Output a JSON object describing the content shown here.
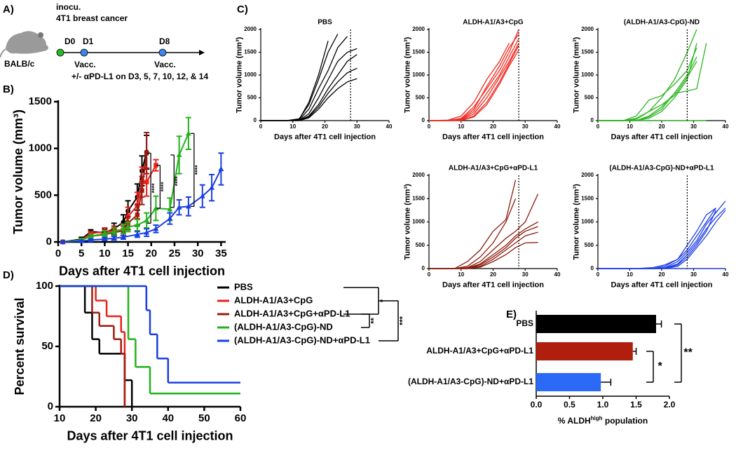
{
  "panel_labels": [
    "A)",
    "B)",
    "C)",
    "D)",
    "E)"
  ],
  "timeline": {
    "host": "BALB/c",
    "top_note": [
      "inocu.",
      "4T1 breast cancer"
    ],
    "days": [
      "D0",
      "D1",
      "D8"
    ],
    "vacc": [
      "Vacc.",
      "Vacc."
    ],
    "treatment": "+/- αPD-L1 on D3, 5, 7, 10, 12, & 14"
  },
  "chart_data": [
    {
      "type": "line",
      "x_label": "Days after 4T1 cell injection",
      "y_label": "Tumor volume (mm³)",
      "xlim": [
        0,
        36
      ],
      "xticks": [
        0,
        5,
        10,
        15,
        20,
        25,
        30,
        35
      ],
      "ylim": [
        0,
        1500
      ],
      "yticks": [
        0,
        500,
        1000,
        1500
      ],
      "significance": [
        "****",
        "****",
        "****",
        "****"
      ],
      "series": [
        {
          "color": "#000000",
          "marker": "circle",
          "x": [
            1,
            5,
            7,
            10,
            12,
            14,
            15,
            17,
            18,
            19
          ],
          "values": [
            0,
            30,
            110,
            100,
            140,
            210,
            330,
            480,
            760,
            960
          ],
          "errors": [
            0,
            20,
            20,
            40,
            60,
            80,
            110,
            140,
            160,
            180
          ]
        },
        {
          "color": "#e8221b",
          "marker": "square",
          "x": [
            1,
            5,
            7,
            10,
            12,
            14,
            15,
            17,
            18,
            19,
            21
          ],
          "values": [
            0,
            20,
            90,
            110,
            120,
            130,
            270,
            390,
            640,
            640,
            820
          ],
          "errors": [
            0,
            15,
            20,
            40,
            50,
            60,
            100,
            140,
            160,
            150,
            60
          ]
        },
        {
          "color": "#a01a10",
          "marker": "square",
          "x": [
            1,
            5,
            7,
            10,
            12,
            14,
            15,
            17,
            18,
            19
          ],
          "values": [
            0,
            20,
            60,
            80,
            100,
            120,
            200,
            290,
            550,
            950
          ],
          "errors": [
            0,
            10,
            15,
            30,
            40,
            50,
            70,
            110,
            150,
            220
          ]
        },
        {
          "color": "#22b21c",
          "marker": "triangle",
          "x": [
            1,
            5,
            7,
            10,
            12,
            14,
            15,
            17,
            19,
            21,
            24,
            26,
            28
          ],
          "values": [
            0,
            20,
            60,
            90,
            110,
            140,
            160,
            180,
            230,
            360,
            350,
            930,
            1160
          ],
          "errors": [
            0,
            15,
            20,
            30,
            40,
            50,
            50,
            60,
            80,
            130,
            120,
            200,
            170
          ]
        },
        {
          "color": "#1a3fe0",
          "marker": "triangle",
          "x": [
            1,
            5,
            7,
            10,
            12,
            14,
            17,
            19,
            21,
            24,
            26,
            28,
            31,
            33,
            35
          ],
          "values": [
            0,
            10,
            20,
            30,
            40,
            50,
            80,
            100,
            140,
            250,
            370,
            380,
            490,
            580,
            780
          ],
          "errors": [
            0,
            5,
            10,
            15,
            20,
            20,
            30,
            40,
            40,
            60,
            80,
            100,
            120,
            140,
            170
          ]
        }
      ]
    },
    {
      "type": "lines",
      "title": "PBS",
      "color": "#000000",
      "x_label": "Days after 4T1 cell injection",
      "y_label": "Tumor volume (mm³)",
      "xlim": [
        0,
        40
      ],
      "xticks": [
        0,
        10,
        20,
        30,
        40
      ],
      "ylim": [
        0,
        2000
      ],
      "yticks": [
        0,
        500,
        1000,
        1500,
        2000
      ],
      "vline": 28,
      "x": [
        0,
        8,
        12,
        15,
        18,
        21,
        24,
        27,
        30
      ],
      "series": [
        {
          "values": [
            0,
            0,
            30,
            400,
            1000,
            1750,
            null,
            null,
            null
          ]
        },
        {
          "values": [
            0,
            0,
            20,
            250,
            700,
            1100,
            1600,
            1850,
            null
          ]
        },
        {
          "values": [
            0,
            0,
            10,
            150,
            500,
            900,
            1300,
            1500,
            1580
          ]
        },
        {
          "values": [
            0,
            0,
            5,
            100,
            350,
            700,
            1000,
            1300,
            1450
          ]
        },
        {
          "values": [
            0,
            0,
            0,
            80,
            300,
            600,
            850,
            1050,
            1150
          ]
        },
        {
          "values": [
            0,
            0,
            0,
            60,
            250,
            500,
            700,
            850,
            920
          ]
        },
        {
          "values": [
            0,
            0,
            40,
            350,
            900,
            1500,
            1900,
            null,
            null
          ]
        }
      ]
    },
    {
      "type": "lines",
      "title": "ALDH-A1/A3+CpG",
      "color": "#f0281e",
      "x_label": "Days after 4T1 cell injection",
      "y_label": "Tumor volume (mm³)",
      "xlim": [
        0,
        40
      ],
      "xticks": [
        0,
        10,
        20,
        30,
        40
      ],
      "ylim": [
        0,
        2000
      ],
      "yticks": [
        0,
        500,
        1000,
        1500,
        2000
      ],
      "vline": 28,
      "x": [
        0,
        6,
        10,
        14,
        18,
        22,
        25,
        28
      ],
      "series": [
        {
          "values": [
            0,
            0,
            50,
            300,
            700,
            1100,
            1500,
            2000
          ]
        },
        {
          "values": [
            0,
            0,
            20,
            200,
            600,
            1000,
            1400,
            1800
          ]
        },
        {
          "values": [
            0,
            0,
            10,
            150,
            500,
            950,
            1300,
            1700
          ]
        },
        {
          "values": [
            0,
            0,
            0,
            100,
            400,
            850,
            1250,
            1650
          ]
        },
        {
          "values": [
            0,
            10,
            100,
            400,
            900,
            1300,
            1700,
            null
          ]
        },
        {
          "values": [
            0,
            0,
            0,
            80,
            350,
            800,
            1200,
            1550
          ]
        },
        {
          "values": [
            0,
            0,
            30,
            250,
            750,
            1200,
            1600,
            1900
          ]
        }
      ]
    },
    {
      "type": "lines",
      "title": "(ALDH-A1/A3-CpG)-ND",
      "color": "#2bb51f",
      "x_label": "Days after 4T1 cell injection",
      "y_label": "Tumor volume (mm³)",
      "xlim": [
        0,
        40
      ],
      "xticks": [
        0,
        10,
        20,
        30,
        40
      ],
      "ylim": [
        0,
        2000
      ],
      "yticks": [
        0,
        500,
        1000,
        1500,
        2000
      ],
      "vline": 28,
      "x": [
        0,
        8,
        12,
        16,
        20,
        24,
        28,
        31,
        34
      ],
      "series": [
        {
          "values": [
            0,
            0,
            50,
            200,
            500,
            900,
            1500,
            2000,
            null
          ]
        },
        {
          "values": [
            0,
            0,
            100,
            450,
            550,
            800,
            1100,
            1600,
            null
          ]
        },
        {
          "values": [
            0,
            0,
            0,
            100,
            300,
            600,
            650,
            700,
            1700
          ]
        },
        {
          "values": [
            0,
            0,
            0,
            80,
            250,
            600,
            1000,
            1400,
            null
          ]
        },
        {
          "values": [
            0,
            0,
            0,
            50,
            200,
            500,
            900,
            1700,
            null
          ]
        },
        {
          "values": [
            0,
            0,
            30,
            200,
            350,
            550,
            950,
            1300,
            null
          ]
        },
        {
          "values": [
            0,
            0,
            0,
            0,
            0,
            0,
            0,
            0,
            0
          ]
        }
      ]
    },
    {
      "type": "lines",
      "title": "ALDH-A1/A3+CpG+αPD-L1",
      "color": "#8c1a0c",
      "x_label": "Days after 4T1 cell injection",
      "y_label": "Tumor volume (mm³)",
      "xlim": [
        0,
        40
      ],
      "xticks": [
        0,
        10,
        20,
        30,
        40
      ],
      "ylim": [
        0,
        2000
      ],
      "yticks": [
        0,
        500,
        1000,
        1500,
        2000
      ],
      "vline": 28,
      "x": [
        0,
        8,
        12,
        16,
        20,
        24,
        27,
        30,
        34
      ],
      "series": [
        {
          "values": [
            0,
            0,
            150,
            400,
            800,
            1050,
            1900,
            null,
            null
          ]
        },
        {
          "values": [
            0,
            0,
            50,
            250,
            550,
            1000,
            1500,
            null,
            null
          ]
        },
        {
          "values": [
            0,
            0,
            20,
            150,
            400,
            650,
            800,
            1000,
            1600
          ]
        },
        {
          "values": [
            0,
            0,
            10,
            100,
            300,
            500,
            700,
            850,
            1000
          ]
        },
        {
          "values": [
            0,
            0,
            0,
            80,
            250,
            450,
            650,
            800,
            900
          ]
        },
        {
          "values": [
            0,
            0,
            0,
            50,
            200,
            400,
            550,
            700,
            780
          ]
        },
        {
          "values": [
            0,
            0,
            0,
            30,
            150,
            300,
            450,
            550,
            560
          ]
        }
      ]
    },
    {
      "type": "lines",
      "title": "(ALDH-A1/A3-CpG)-ND+αPD-L1",
      "color": "#1f3fe6",
      "x_label": "Days after 4T1 cell injection",
      "y_label": "Tumor volume (mm³)",
      "xlim": [
        0,
        40
      ],
      "xticks": [
        0,
        10,
        20,
        30,
        40
      ],
      "ylim": [
        0,
        2000
      ],
      "yticks": [
        0,
        500,
        1000,
        1500,
        2000
      ],
      "vline": 28,
      "x": [
        0,
        12,
        17,
        21,
        25,
        28,
        31,
        34,
        37,
        40
      ],
      "series": [
        {
          "values": [
            0,
            0,
            0,
            50,
            200,
            400,
            700,
            1000,
            1300,
            null
          ]
        },
        {
          "values": [
            0,
            0,
            0,
            20,
            150,
            350,
            600,
            950,
            1200,
            1450
          ]
        },
        {
          "values": [
            0,
            0,
            0,
            10,
            100,
            300,
            550,
            850,
            1100,
            1300
          ]
        },
        {
          "values": [
            0,
            0,
            0,
            0,
            80,
            250,
            500,
            800,
            1250,
            null
          ]
        },
        {
          "values": [
            0,
            0,
            0,
            0,
            50,
            200,
            450,
            700,
            1000,
            1250
          ]
        },
        {
          "values": [
            0,
            0,
            0,
            0,
            0,
            0,
            0,
            0,
            0,
            0
          ]
        },
        {
          "values": [
            0,
            0,
            20,
            80,
            200,
            500,
            800,
            1150,
            1300,
            null
          ]
        }
      ]
    },
    {
      "type": "step",
      "x_label": "Days after 4T1 cell injection",
      "y_label": "Percent survival",
      "xlim": [
        10,
        60
      ],
      "xticks": [
        10,
        20,
        30,
        40,
        50,
        60
      ],
      "ylim": [
        0,
        100
      ],
      "yticks": [
        0,
        50,
        100
      ],
      "significance": [
        "*",
        "**",
        "***"
      ],
      "series": [
        {
          "name": "PBS",
          "color": "#000000",
          "x": [
            10,
            17,
            19,
            21,
            28,
            30
          ],
          "values": [
            100,
            78,
            56,
            44,
            22,
            0
          ]
        },
        {
          "name": "ALDH-A1/A3+CpG",
          "color": "#e8221b",
          "x": [
            10,
            20,
            23,
            27,
            28
          ],
          "values": [
            100,
            88,
            75,
            62,
            0
          ]
        },
        {
          "name": "ALDH-A1/A3+CpG+αPD-L1",
          "color": "#a01a10",
          "x": [
            10,
            19,
            21,
            25,
            27,
            28
          ],
          "values": [
            100,
            78,
            67,
            56,
            44,
            0
          ]
        },
        {
          "name": "(ALDH-A1/A3-CpG)-ND",
          "color": "#22b21c",
          "x": [
            10,
            29,
            31,
            35
          ],
          "values": [
            100,
            56,
            33,
            11
          ]
        },
        {
          "name": "(ALDH-A1/A3-CpG)-ND+αPD-L1",
          "color": "#1a3fe0",
          "x": [
            10,
            34,
            35,
            37,
            40
          ],
          "values": [
            100,
            80,
            60,
            40,
            20
          ]
        }
      ]
    },
    {
      "type": "barh",
      "x_label": [
        "% ALDH",
        "high",
        " population"
      ],
      "xlim": [
        0,
        2
      ],
      "xticks": [
        {
          "value": 0,
          "label": "0.0"
        },
        {
          "value": 0.5,
          "label": "0.5"
        },
        {
          "value": 1,
          "label": "1.0"
        },
        {
          "value": 1.5,
          "label": "1.5"
        },
        {
          "value": 2,
          "label": "2.0"
        }
      ],
      "categories": [
        "PBS",
        "ALDH-A1/A3+CpG+αPD-L1",
        "(ALDH-A1/A3-CpG)-ND+αPD-L1"
      ],
      "values": [
        1.8,
        1.45,
        0.97
      ],
      "errors": [
        0.08,
        0.05,
        0.15
      ],
      "colors": [
        "#000000",
        "#b01e0e",
        "#2b6af7"
      ],
      "significance": [
        "**",
        "*"
      ]
    }
  ]
}
